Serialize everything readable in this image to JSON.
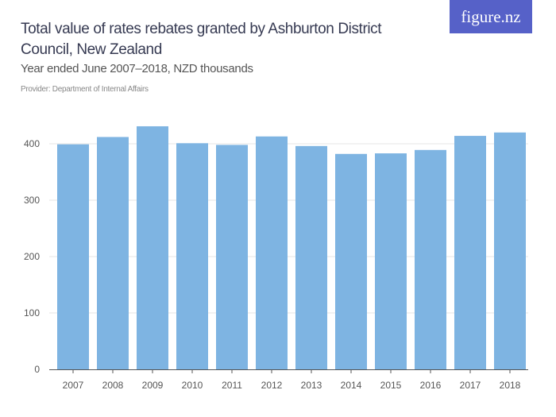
{
  "header": {
    "title": "Total value of rates rebates granted by Ashburton District Council, New Zealand",
    "subtitle": "Year ended June 2007–2018, NZD thousands",
    "provider": "Provider: Department of Internal Affairs",
    "logo": "figure.nz"
  },
  "chart_data": {
    "type": "bar",
    "categories": [
      "2007",
      "2008",
      "2009",
      "2010",
      "2011",
      "2012",
      "2013",
      "2014",
      "2015",
      "2016",
      "2017",
      "2018"
    ],
    "values": [
      399,
      412,
      431,
      401,
      398,
      413,
      396,
      382,
      383,
      389,
      414,
      420
    ],
    "ylim": [
      0,
      400
    ],
    "yticks": [
      0,
      100,
      200,
      300,
      400
    ],
    "grid": true,
    "bar_color": "#7eb4e2"
  }
}
